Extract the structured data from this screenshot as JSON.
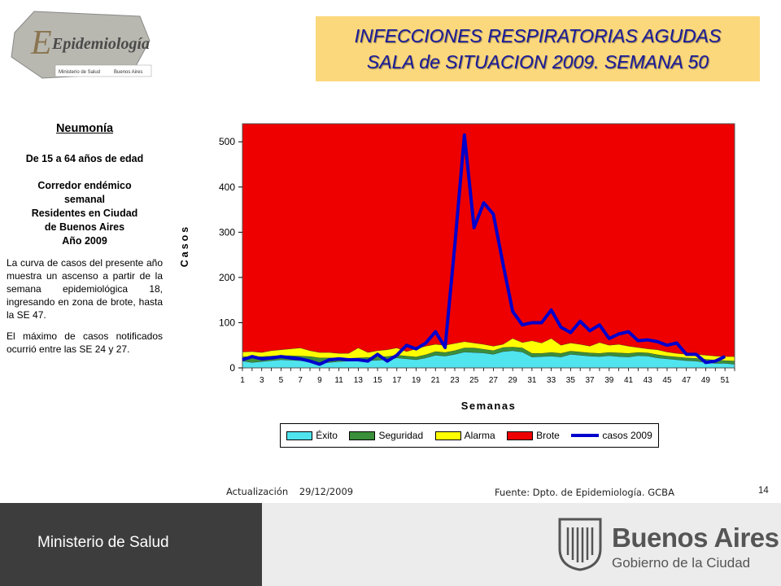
{
  "header": {
    "logo_text": "Epidemiología",
    "logo_caption": "Ministerio de Salud",
    "logo_caption2": "Buenos Aires",
    "title_line1": "INFECCIONES RESPIRATORIAS AGUDAS",
    "title_line2": "SALA de SITUACION 2009. SEMANA 50"
  },
  "sidebar": {
    "heading": "Neumonía",
    "age_range": "De 15 a 64 años de edad",
    "desc_line1": "Corredor endémico",
    "desc_line2": "semanal",
    "desc_line3": "Residentes en Ciudad",
    "desc_line4": "de Buenos Aires",
    "desc_line5": "Año 2009",
    "para1": "La curva de casos del presente año muestra un ascenso a partir de la semana epidemiológica 18, ingresando en zona de brote, hasta la SE 47.",
    "para2": "El máximo de casos notificados ocurrió entre las SE 24 y 27."
  },
  "chart_data": {
    "type": "area",
    "ylabel": "Casos",
    "xlabel": "Semanas",
    "ylim": [
      0,
      540
    ],
    "y_ticks": [
      0,
      100,
      200,
      300,
      400,
      500
    ],
    "x_ticks": [
      1,
      3,
      5,
      7,
      9,
      11,
      13,
      15,
      17,
      19,
      21,
      23,
      25,
      27,
      29,
      31,
      33,
      35,
      37,
      39,
      41,
      43,
      45,
      47,
      49,
      51
    ],
    "x": [
      1,
      2,
      3,
      4,
      5,
      6,
      7,
      8,
      9,
      10,
      11,
      12,
      13,
      14,
      15,
      16,
      17,
      18,
      19,
      20,
      21,
      22,
      23,
      24,
      25,
      26,
      27,
      28,
      29,
      30,
      31,
      32,
      33,
      34,
      35,
      36,
      37,
      38,
      39,
      40,
      41,
      42,
      43,
      44,
      45,
      46,
      47,
      48,
      49,
      50,
      51,
      52
    ],
    "series": [
      {
        "name": "Éxito",
        "color": "#4fe4ee",
        "values": [
          15,
          12,
          14,
          16,
          18,
          17,
          16,
          14,
          10,
          12,
          14,
          15,
          16,
          16,
          17,
          18,
          22,
          20,
          18,
          22,
          28,
          26,
          30,
          35,
          34,
          33,
          30,
          36,
          38,
          35,
          24,
          25,
          26,
          24,
          30,
          28,
          26,
          25,
          27,
          25,
          24,
          27,
          26,
          22,
          20,
          18,
          16,
          15,
          12,
          10,
          10,
          8
        ]
      },
      {
        "name": "Seguridad",
        "color": "#3a8f3a",
        "values": [
          25,
          24,
          25,
          26,
          27,
          27,
          26,
          25,
          22,
          22,
          21,
          21,
          22,
          23,
          24,
          25,
          28,
          26,
          24,
          29,
          36,
          34,
          38,
          44,
          44,
          41,
          38,
          45,
          46,
          44,
          32,
          32,
          34,
          32,
          37,
          35,
          33,
          32,
          34,
          33,
          32,
          34,
          33,
          29,
          26,
          24,
          22,
          21,
          19,
          17,
          16,
          15
        ]
      },
      {
        "name": "Alarma",
        "color": "#ffff00",
        "values": [
          35,
          36,
          34,
          38,
          40,
          42,
          44,
          38,
          34,
          34,
          32,
          32,
          44,
          34,
          38,
          40,
          44,
          36,
          42,
          48,
          52,
          50,
          54,
          58,
          55,
          52,
          48,
          52,
          65,
          56,
          60,
          55,
          65,
          50,
          55,
          52,
          48,
          56,
          50,
          52,
          48,
          45,
          42,
          40,
          35,
          32,
          30,
          30,
          28,
          26,
          25,
          25
        ]
      },
      {
        "name": "Brote",
        "color": "#ee0000",
        "values": [
          540,
          540,
          540,
          540,
          540,
          540,
          540,
          540,
          540,
          540,
          540,
          540,
          540,
          540,
          540,
          540,
          540,
          540,
          540,
          540,
          540,
          540,
          540,
          540,
          540,
          540,
          540,
          540,
          540,
          540,
          540,
          540,
          540,
          540,
          540,
          540,
          540,
          540,
          540,
          540,
          540,
          540,
          540,
          540,
          540,
          540,
          540,
          540,
          540,
          540,
          540,
          540
        ]
      },
      {
        "name": "casos 2009",
        "color": "#0000cc",
        "values": [
          18,
          25,
          20,
          22,
          25,
          22,
          20,
          15,
          8,
          18,
          20,
          18,
          18,
          15,
          30,
          15,
          28,
          50,
          42,
          55,
          80,
          45,
          270,
          515,
          310,
          365,
          340,
          230,
          125,
          95,
          100,
          100,
          128,
          90,
          78,
          103,
          82,
          95,
          65,
          75,
          80,
          60,
          62,
          58,
          50,
          55,
          30,
          30,
          12,
          15,
          25,
          null
        ]
      }
    ]
  },
  "legend": [
    "Éxito",
    "Seguridad",
    "Alarma",
    "Brote",
    "casos 2009"
  ],
  "footer": {
    "update_label": "Actualización",
    "update_date": "29/12/2009",
    "source": "Fuente: Dpto. de Epidemiología.  GCBA",
    "page": "14",
    "ministry": "Ministerio de Salud",
    "city_name": "Buenos Aires",
    "city_sub": "Gobierno de la Ciudad"
  }
}
